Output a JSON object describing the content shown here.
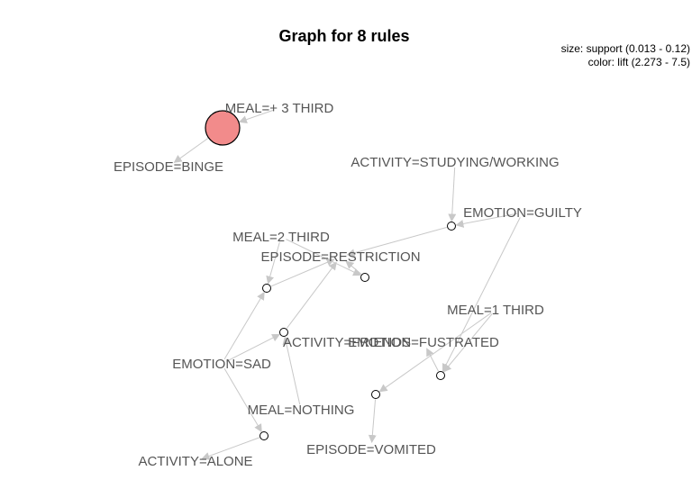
{
  "title": "Graph for 8 rules",
  "legend": {
    "size": "size: support (0.013 - 0.12)",
    "color": "color: lift (2.273 - 7.5)"
  },
  "colors": {
    "edge": "#c8c8c8",
    "label": "#555555",
    "rule_high_lift": "#f28b8b",
    "rule_low_lift": "#ffffff"
  },
  "items": [
    {
      "id": "meal3",
      "label": "MEAL=+  3 THIRD"
    },
    {
      "id": "binge",
      "label": "EPISODE=BINGE"
    },
    {
      "id": "studying",
      "label": "ACTIVITY=STUDYING/WORKING"
    },
    {
      "id": "guilty",
      "label": "EMOTION=GUILTY"
    },
    {
      "id": "meal2",
      "label": "MEAL=2 THIRD"
    },
    {
      "id": "restriction",
      "label": "EPISODE=RESTRICTION"
    },
    {
      "id": "meal1",
      "label": "MEAL=1 THIRD"
    },
    {
      "id": "friends",
      "label": "ACTIVITY=FRIENDS"
    },
    {
      "id": "frustrated",
      "label": "EMOTION=FUSTRATED"
    },
    {
      "id": "sad",
      "label": "EMOTION=SAD"
    },
    {
      "id": "nothing",
      "label": "MEAL=NOTHING"
    },
    {
      "id": "vomited",
      "label": "EPISODE=VOMITED"
    },
    {
      "id": "alone",
      "label": "ACTIVITY=ALONE"
    }
  ],
  "rules": [
    {
      "id": "r1",
      "support_level": "max",
      "lift_level": "max"
    },
    {
      "id": "r2",
      "support_level": "min",
      "lift_level": "min"
    },
    {
      "id": "r3",
      "support_level": "min",
      "lift_level": "min"
    },
    {
      "id": "r4",
      "support_level": "min",
      "lift_level": "min"
    },
    {
      "id": "r5",
      "support_level": "min",
      "lift_level": "min"
    },
    {
      "id": "r6",
      "support_level": "min",
      "lift_level": "min"
    },
    {
      "id": "r7",
      "support_level": "min",
      "lift_level": "min"
    },
    {
      "id": "r8",
      "support_level": "min",
      "lift_level": "min"
    }
  ],
  "edges": [
    {
      "from": "meal3",
      "to": "r1"
    },
    {
      "from": "r1",
      "to": "binge"
    },
    {
      "from": "studying",
      "to": "r2"
    },
    {
      "from": "guilty",
      "to": "r2"
    },
    {
      "from": "r2",
      "to": "restriction"
    },
    {
      "from": "meal2",
      "to": "r3"
    },
    {
      "from": "sad",
      "to": "r3"
    },
    {
      "from": "r3",
      "to": "restriction"
    },
    {
      "from": "meal2",
      "to": "r4"
    },
    {
      "from": "r4",
      "to": "restriction"
    },
    {
      "from": "sad",
      "to": "r5"
    },
    {
      "from": "nothing",
      "to": "r5"
    },
    {
      "from": "r5",
      "to": "restriction"
    },
    {
      "from": "sad",
      "to": "r6"
    },
    {
      "from": "r6",
      "to": "alone"
    },
    {
      "from": "meal1",
      "to": "r7"
    },
    {
      "from": "r7",
      "to": "vomited"
    },
    {
      "from": "meal1",
      "to": "r8"
    },
    {
      "from": "guilty",
      "to": "r8"
    },
    {
      "from": "r8",
      "to": "frustrated"
    }
  ]
}
